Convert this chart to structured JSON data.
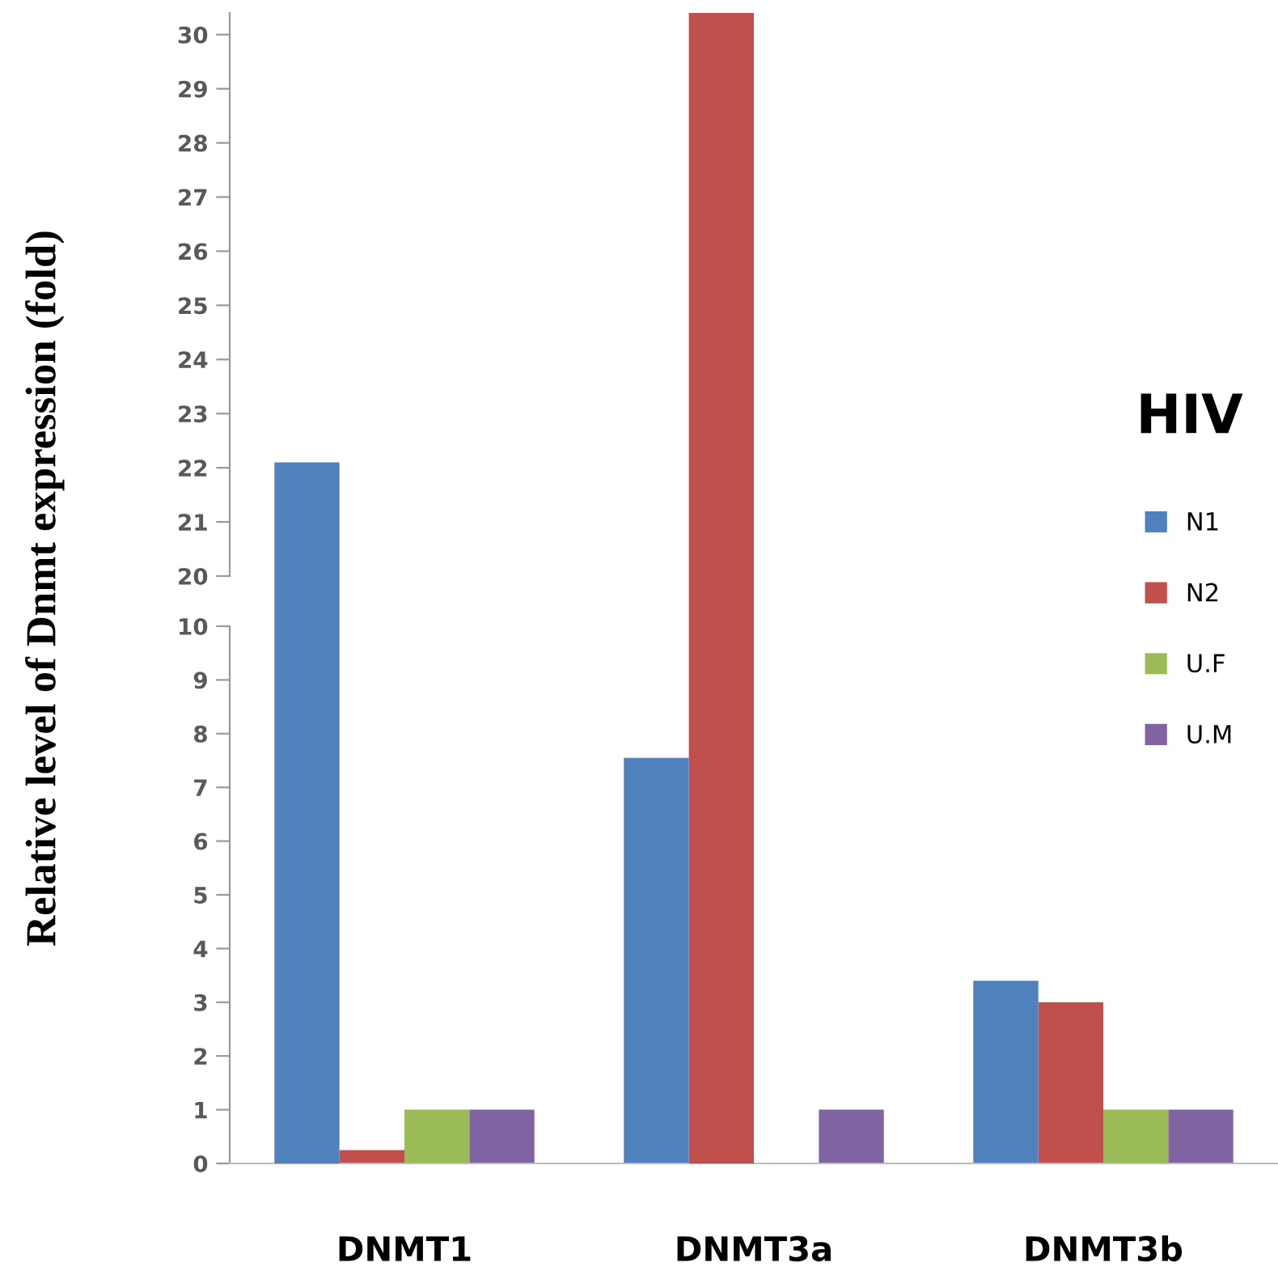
{
  "chart_data": [
    {
      "type": "bar",
      "ylim": [
        20,
        30.4
      ],
      "yticks": [
        20,
        21,
        22,
        23,
        24,
        25,
        26,
        27,
        28,
        29,
        30
      ],
      "tick_labels": "y",
      "ylabel": "Relative level of Dnmt expression (fold)",
      "series": [
        {
          "color": "#4f81bd",
          "values": [
            22.1,
            null,
            null
          ]
        },
        {
          "color": "#c0504d",
          "values": [
            null,
            30.4,
            null
          ]
        }
      ]
    },
    {
      "type": "bar",
      "categories": [
        "DNMT1",
        "DNMT3a",
        "DNMT3b"
      ],
      "ylim": [
        0,
        10
      ],
      "yticks": [
        0,
        1,
        2,
        3,
        4,
        5,
        6,
        7,
        8,
        9,
        10
      ],
      "legend": "right",
      "legend_title": "HIV",
      "series": [
        {
          "name": "N1",
          "color": "#4f81bd",
          "values": [
            null,
            7.55,
            3.4
          ]
        },
        {
          "name": "N2",
          "color": "#c0504d",
          "values": [
            0.25,
            null,
            3.0
          ]
        },
        {
          "name": "U.F",
          "color": "#9bbb59",
          "values": [
            1,
            null,
            1
          ]
        },
        {
          "name": "U.M",
          "color": "#8064a2",
          "values": [
            1,
            1,
            1
          ]
        }
      ]
    }
  ]
}
